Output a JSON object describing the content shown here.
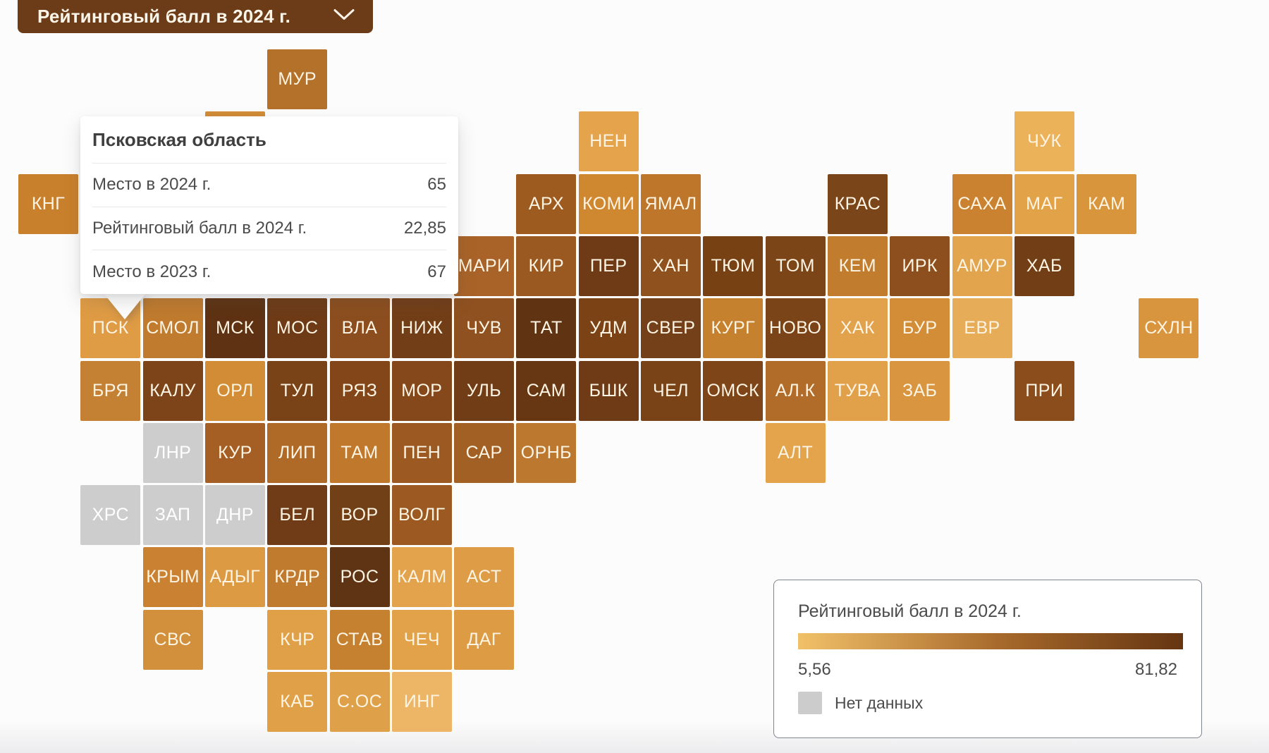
{
  "dropdown": {
    "label": "Рейтинговый балл в 2024 г.",
    "chevron_icon": "chevron-down"
  },
  "tooltip": {
    "title": "Псковская область",
    "rows": [
      {
        "label": "Место в 2024 г.",
        "value": "65"
      },
      {
        "label": "Рейтинговый балл в 2024 г.",
        "value": "22,85"
      },
      {
        "label": "Место в 2023 г.",
        "value": "67"
      }
    ],
    "anchor_region": "ПСК"
  },
  "legend": {
    "title": "Рейтинговый балл в 2024 г.",
    "min": "5,56",
    "max": "81,82",
    "no_data_label": "Нет данных",
    "no_data_color": "#cccccc",
    "gradient_start": "#f1c169",
    "gradient_mid": "#a86a2c",
    "gradient_end": "#653511"
  },
  "colors": {
    "dropdown_bg": "#6b3c17",
    "tile_text": "#fdf5e6",
    "background": "#fcfcfc"
  },
  "chart_data": {
    "type": "heatmap",
    "title": "Рейтинговый балл в 2024 г.",
    "legend_min": 5.56,
    "legend_max": 81.82,
    "highlighted_region": {
      "name": "Псковская область",
      "place_2024": 65,
      "score_2024": 22.85,
      "place_2023": 67
    },
    "tiles": [
      {
        "label": "МУР",
        "row": 0,
        "col": 4,
        "color": "#b4712a"
      },
      {
        "label": "",
        "row": 1,
        "col": 3,
        "color": "#d28c36"
      },
      {
        "label": "НЕН",
        "row": 1,
        "col": 9,
        "color": "#e5a34c"
      },
      {
        "label": "ЧУК",
        "row": 1,
        "col": 16,
        "color": "#ecb259"
      },
      {
        "label": "КНГ",
        "row": 2,
        "col": 0,
        "color": "#c9802c"
      },
      {
        "label": "АРХ",
        "row": 2,
        "col": 8,
        "color": "#9d5b20"
      },
      {
        "label": "КОМИ",
        "row": 2,
        "col": 9,
        "color": "#d08830"
      },
      {
        "label": "ЯМАЛ",
        "row": 2,
        "col": 10,
        "color": "#bd762a"
      },
      {
        "label": "КРАС",
        "row": 2,
        "col": 13,
        "color": "#7b451a"
      },
      {
        "label": "САХА",
        "row": 2,
        "col": 15,
        "color": "#ca8230"
      },
      {
        "label": "МАГ",
        "row": 2,
        "col": 16,
        "color": "#e2a348"
      },
      {
        "label": "КАМ",
        "row": 2,
        "col": 17,
        "color": "#d9953c"
      },
      {
        "label": "МАРИ",
        "row": 3,
        "col": 7,
        "color": "#a96328"
      },
      {
        "label": "КИР",
        "row": 3,
        "col": 8,
        "color": "#9b5922"
      },
      {
        "label": "ПЕР",
        "row": 3,
        "col": 9,
        "color": "#6f3b16"
      },
      {
        "label": "ХАН",
        "row": 3,
        "col": 10,
        "color": "#8f511e"
      },
      {
        "label": "ТЮМ",
        "row": 3,
        "col": 11,
        "color": "#774114"
      },
      {
        "label": "ТОМ",
        "row": 3,
        "col": 12,
        "color": "#7c4517"
      },
      {
        "label": "КЕМ",
        "row": 3,
        "col": 13,
        "color": "#c27c2e"
      },
      {
        "label": "ИРК",
        "row": 3,
        "col": 14,
        "color": "#8e4f1e"
      },
      {
        "label": "АМУР",
        "row": 3,
        "col": 15,
        "color": "#e2a54e"
      },
      {
        "label": "ХАБ",
        "row": 3,
        "col": 16,
        "color": "#723e15"
      },
      {
        "label": "ПСК",
        "row": 4,
        "col": 1,
        "color": "#e09c44"
      },
      {
        "label": "СМОЛ",
        "row": 4,
        "col": 2,
        "color": "#c07b2e"
      },
      {
        "label": "МСК",
        "row": 4,
        "col": 3,
        "color": "#5e3212"
      },
      {
        "label": "МОС",
        "row": 4,
        "col": 4,
        "color": "#6e3b16"
      },
      {
        "label": "ВЛА",
        "row": 4,
        "col": 5,
        "color": "#8c4e1e"
      },
      {
        "label": "НИЖ",
        "row": 4,
        "col": 6,
        "color": "#723e17"
      },
      {
        "label": "ЧУВ",
        "row": 4,
        "col": 7,
        "color": "#8f511f"
      },
      {
        "label": "ТАТ",
        "row": 4,
        "col": 8,
        "color": "#603413"
      },
      {
        "label": "УДМ",
        "row": 4,
        "col": 9,
        "color": "#7b4215"
      },
      {
        "label": "СВЕР",
        "row": 4,
        "col": 10,
        "color": "#744019"
      },
      {
        "label": "КУРГ",
        "row": 4,
        "col": 11,
        "color": "#c6812f"
      },
      {
        "label": "НОВО",
        "row": 4,
        "col": 12,
        "color": "#7a4318"
      },
      {
        "label": "ХАК",
        "row": 4,
        "col": 13,
        "color": "#e2a24b"
      },
      {
        "label": "БУР",
        "row": 4,
        "col": 14,
        "color": "#d28d36"
      },
      {
        "label": "ЕВР",
        "row": 4,
        "col": 15,
        "color": "#e6ac57"
      },
      {
        "label": "СХЛН",
        "row": 4,
        "col": 18,
        "color": "#d9953e"
      },
      {
        "label": "БРЯ",
        "row": 5,
        "col": 1,
        "color": "#c48134"
      },
      {
        "label": "КАЛУ",
        "row": 5,
        "col": 2,
        "color": "#7c4418"
      },
      {
        "label": "ОРЛ",
        "row": 5,
        "col": 3,
        "color": "#d28c36"
      },
      {
        "label": "ТУЛ",
        "row": 5,
        "col": 4,
        "color": "#7a4217"
      },
      {
        "label": "РЯЗ",
        "row": 5,
        "col": 5,
        "color": "#824619"
      },
      {
        "label": "МОР",
        "row": 5,
        "col": 6,
        "color": "#84481a"
      },
      {
        "label": "УЛЬ",
        "row": 5,
        "col": 7,
        "color": "#703d17"
      },
      {
        "label": "САМ",
        "row": 5,
        "col": 8,
        "color": "#673714"
      },
      {
        "label": "БШК",
        "row": 5,
        "col": 9,
        "color": "#6e3b16"
      },
      {
        "label": "ЧЕЛ",
        "row": 5,
        "col": 10,
        "color": "#794217"
      },
      {
        "label": "ОМСК",
        "row": 5,
        "col": 11,
        "color": "#7d4518"
      },
      {
        "label": "АЛ.К",
        "row": 5,
        "col": 12,
        "color": "#b06c28"
      },
      {
        "label": "ТУВА",
        "row": 5,
        "col": 13,
        "color": "#e1a14b"
      },
      {
        "label": "ЗАБ",
        "row": 5,
        "col": 14,
        "color": "#d99540"
      },
      {
        "label": "ПРИ",
        "row": 5,
        "col": 16,
        "color": "#8b4d1c"
      },
      {
        "label": "ЛНР",
        "row": 6,
        "col": 2,
        "color": "#cdcdcd",
        "text": "#ffffff"
      },
      {
        "label": "КУР",
        "row": 6,
        "col": 3,
        "color": "#a55f24"
      },
      {
        "label": "ЛИП",
        "row": 6,
        "col": 4,
        "color": "#b06a28"
      },
      {
        "label": "ТАМ",
        "row": 6,
        "col": 5,
        "color": "#c0782c"
      },
      {
        "label": "ПЕН",
        "row": 6,
        "col": 6,
        "color": "#9c5a22"
      },
      {
        "label": "САР",
        "row": 6,
        "col": 7,
        "color": "#a26024"
      },
      {
        "label": "ОРНБ",
        "row": 6,
        "col": 8,
        "color": "#bd7830"
      },
      {
        "label": "АЛТ",
        "row": 6,
        "col": 12,
        "color": "#e3a44c"
      },
      {
        "label": "ХРС",
        "row": 7,
        "col": 1,
        "color": "#cdcdcd",
        "text": "#ffffff"
      },
      {
        "label": "ЗАП",
        "row": 7,
        "col": 2,
        "color": "#cdcdcd",
        "text": "#ffffff"
      },
      {
        "label": "ДНР",
        "row": 7,
        "col": 3,
        "color": "#cdcdcd",
        "text": "#ffffff"
      },
      {
        "label": "БЕЛ",
        "row": 7,
        "col": 4,
        "color": "#6f3c17"
      },
      {
        "label": "ВОР",
        "row": 7,
        "col": 5,
        "color": "#724017"
      },
      {
        "label": "ВОЛГ",
        "row": 7,
        "col": 6,
        "color": "#9c5a22"
      },
      {
        "label": "КРЫМ",
        "row": 8,
        "col": 2,
        "color": "#ca8232"
      },
      {
        "label": "АДЫГ",
        "row": 8,
        "col": 3,
        "color": "#dc9a42"
      },
      {
        "label": "КРДР",
        "row": 8,
        "col": 4,
        "color": "#c07b2e"
      },
      {
        "label": "РОС",
        "row": 8,
        "col": 5,
        "color": "#5f3414"
      },
      {
        "label": "КАЛМ",
        "row": 8,
        "col": 6,
        "color": "#e3a34c"
      },
      {
        "label": "АСТ",
        "row": 8,
        "col": 7,
        "color": "#dd9c45"
      },
      {
        "label": "СВС",
        "row": 9,
        "col": 2,
        "color": "#d28f3c"
      },
      {
        "label": "КЧР",
        "row": 9,
        "col": 4,
        "color": "#e0a048"
      },
      {
        "label": "СТАВ",
        "row": 9,
        "col": 5,
        "color": "#c5812f"
      },
      {
        "label": "ЧЕЧ",
        "row": 9,
        "col": 6,
        "color": "#e2a24a"
      },
      {
        "label": "ДАГ",
        "row": 9,
        "col": 7,
        "color": "#dd9b43"
      },
      {
        "label": "КАБ",
        "row": 10,
        "col": 4,
        "color": "#e0a048"
      },
      {
        "label": "С.ОС",
        "row": 10,
        "col": 5,
        "color": "#dfa04a"
      },
      {
        "label": "ИНГ",
        "row": 10,
        "col": 6,
        "color": "#ecb666"
      }
    ]
  }
}
